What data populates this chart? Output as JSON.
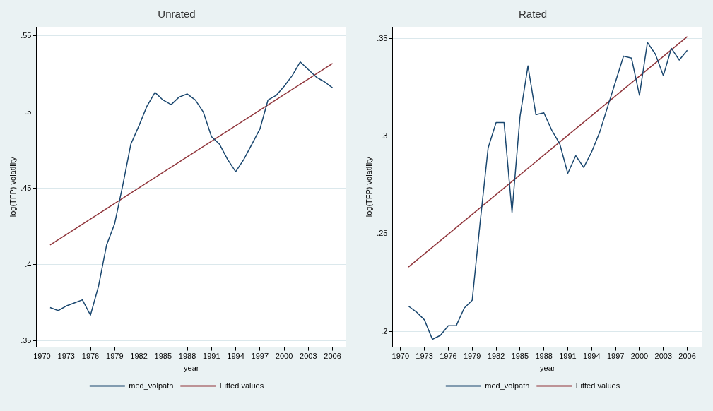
{
  "chart_data": [
    {
      "type": "line",
      "title": "Unrated",
      "xlabel": "year",
      "ylabel": "log(TFP) volatility",
      "series": [
        {
          "name": "med_volpath",
          "color": "#1a476f",
          "x": [
            1971,
            1972,
            1973,
            1974,
            1975,
            1976,
            1977,
            1978,
            1979,
            1980,
            1981,
            1982,
            1983,
            1984,
            1985,
            1986,
            1987,
            1988,
            1989,
            1990,
            1991,
            1992,
            1993,
            1994,
            1995,
            1996,
            1997,
            1998,
            1999,
            2000,
            2001,
            2002,
            2003,
            2004,
            2005,
            2006
          ],
          "values": [
            0.372,
            0.37,
            0.373,
            0.375,
            0.377,
            0.367,
            0.386,
            0.413,
            0.427,
            0.452,
            0.479,
            0.491,
            0.504,
            0.513,
            0.508,
            0.505,
            0.51,
            0.512,
            0.508,
            0.5,
            0.484,
            0.479,
            0.469,
            0.461,
            0.469,
            0.479,
            0.489,
            0.508,
            0.511,
            0.517,
            0.524,
            0.533,
            0.528,
            0.523,
            0.52,
            0.516
          ]
        },
        {
          "name": "Fitted values",
          "color": "#90353b",
          "type": "line",
          "x": [
            1971,
            2006
          ],
          "values": [
            0.413,
            0.532
          ]
        }
      ],
      "xlim": [
        1969.3,
        2007.7
      ],
      "ylim": [
        0.346,
        0.556
      ],
      "xticks": [
        1970,
        1973,
        1976,
        1979,
        1982,
        1985,
        1988,
        1991,
        1994,
        1997,
        2000,
        2003,
        2006
      ],
      "yticks": [
        {
          "value": 0.35,
          "label": ".35"
        },
        {
          "value": 0.4,
          "label": ".4"
        },
        {
          "value": 0.45,
          "label": ".45"
        },
        {
          "value": 0.5,
          "label": ".5"
        },
        {
          "value": 0.55,
          "label": ".55"
        }
      ],
      "grid": "y",
      "legend": "bottom",
      "marker": "none",
      "line_style": "solid"
    },
    {
      "type": "line",
      "title": "Rated",
      "xlabel": "year",
      "ylabel": "log(TFP) volatility",
      "series": [
        {
          "name": "med_volpath",
          "color": "#1a476f",
          "x": [
            1971,
            1972,
            1973,
            1974,
            1975,
            1976,
            1977,
            1978,
            1979,
            1980,
            1981,
            1982,
            1983,
            1984,
            1985,
            1986,
            1987,
            1988,
            1989,
            1990,
            1991,
            1992,
            1993,
            1994,
            1995,
            1996,
            1997,
            1998,
            1999,
            2000,
            2001,
            2002,
            2003,
            2004,
            2005,
            2006
          ],
          "values": [
            0.213,
            0.21,
            0.206,
            0.196,
            0.198,
            0.203,
            0.203,
            0.212,
            0.216,
            0.256,
            0.294,
            0.307,
            0.307,
            0.261,
            0.31,
            0.336,
            0.311,
            0.312,
            0.303,
            0.296,
            0.281,
            0.29,
            0.284,
            0.292,
            0.302,
            0.315,
            0.328,
            0.341,
            0.34,
            0.321,
            0.348,
            0.342,
            0.331,
            0.345,
            0.339,
            0.344
          ]
        },
        {
          "name": "Fitted values",
          "color": "#90353b",
          "type": "line",
          "x": [
            1971,
            2006
          ],
          "values": [
            0.233,
            0.351
          ]
        }
      ],
      "xlim": [
        1969.0,
        2007.9
      ],
      "ylim": [
        0.192,
        0.356
      ],
      "xticks": [
        1970,
        1973,
        1976,
        1979,
        1982,
        1985,
        1988,
        1991,
        1994,
        1997,
        2000,
        2003,
        2006
      ],
      "yticks": [
        {
          "value": 0.2,
          "label": ".2"
        },
        {
          "value": 0.25,
          "label": ".25"
        },
        {
          "value": 0.3,
          "label": ".3"
        },
        {
          "value": 0.35,
          "label": ".35"
        }
      ],
      "grid": "y",
      "legend": "bottom",
      "marker": "none",
      "line_style": "solid"
    }
  ]
}
